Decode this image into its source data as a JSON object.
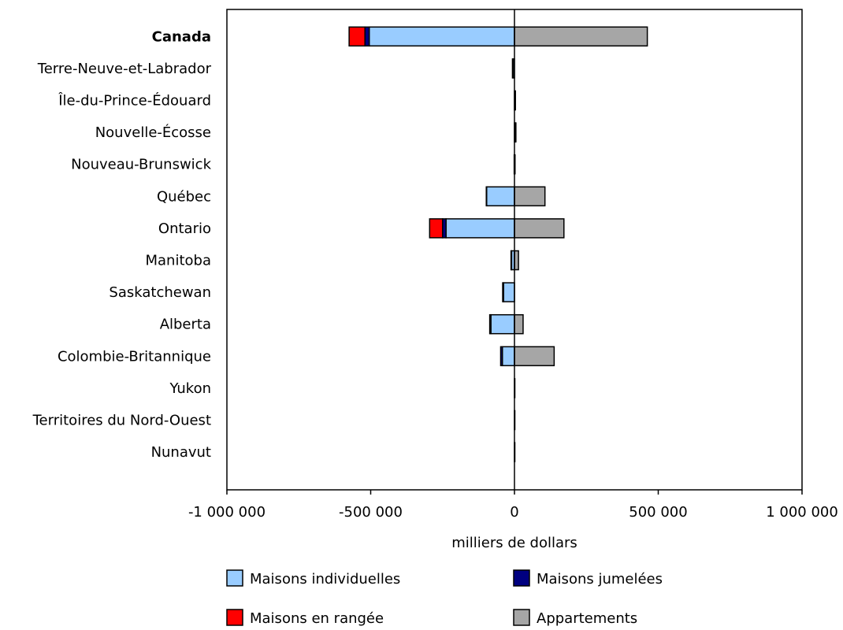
{
  "chart_data": {
    "type": "bar",
    "orientation": "horizontal",
    "stacked": true,
    "title": "",
    "xlabel": "milliers de dollars",
    "ylabel": "",
    "xlim": [
      -1000000,
      1000000
    ],
    "x_ticks": [
      -1000000,
      -500000,
      0,
      500000,
      1000000
    ],
    "x_tick_labels": [
      "-1 000 000",
      "-500 000",
      "0",
      "500 000",
      "1 000 000"
    ],
    "grid": false,
    "legend_position": "bottom",
    "bold_categories": [
      "Canada"
    ],
    "categories": [
      "Canada",
      "Terre-Neuve-et-Labrador",
      "Île-du-Prince-Édouard",
      "Nouvelle-Écosse",
      "Nouveau-Brunswick",
      "Québec",
      "Ontario",
      "Manitoba",
      "Saskatchewan",
      "Alberta",
      "Colombie-Britannique",
      "Yukon",
      "Territoires du Nord-Ouest",
      "Nunavut"
    ],
    "series": [
      {
        "name": "Maisons individuelles",
        "color": "#99ccff",
        "values": [
          -505000,
          -5000,
          2000,
          3000,
          2000,
          -97000,
          -238000,
          -10000,
          -38000,
          -82000,
          -42000,
          1000,
          1000,
          500
        ]
      },
      {
        "name": "Maisons jumelées",
        "color": "#000080",
        "values": [
          -15000,
          -2000,
          0,
          0,
          -1000,
          -1000,
          -12000,
          -2000,
          -3000,
          -4000,
          -6000,
          0,
          0,
          0
        ]
      },
      {
        "name": "Maisons en rangée",
        "color": "#ff0000",
        "values": [
          -55000,
          0,
          0,
          0,
          0,
          0,
          -45000,
          0,
          0,
          0,
          0,
          0,
          0,
          0
        ]
      },
      {
        "name": "Appartements",
        "color": "#a6a6a6",
        "values": [
          462000,
          0,
          1000,
          2000,
          0,
          106000,
          172000,
          14000,
          0,
          30000,
          138000,
          0,
          0,
          0
        ]
      }
    ]
  }
}
